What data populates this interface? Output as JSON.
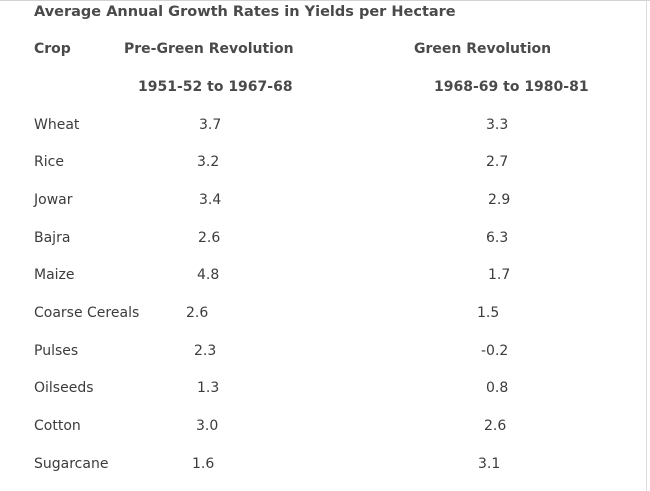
{
  "title": "Average Annual Growth Rates in Yields per Hectare",
  "headers": {
    "crop": "Crop",
    "pre": "Pre-Green Revolution",
    "green": "Green Revolution",
    "pre_period": "1951-52 to 1967-68",
    "green_period": "1968-69 to 1980-81"
  },
  "rows": [
    {
      "crop": "Wheat",
      "pre": "3.7",
      "green": "3.3"
    },
    {
      "crop": "Rice",
      "pre": "3.2",
      "green": "2.7"
    },
    {
      "crop": "Jowar",
      "pre": "3.4",
      "green": "2.9"
    },
    {
      "crop": "Bajra",
      "pre": "2.6",
      "green": "6.3"
    },
    {
      "crop": "Maize",
      "pre": "4.8",
      "green": "1.7"
    },
    {
      "crop": "Coarse Cereals",
      "pre": "2.6",
      "green": "1.5"
    },
    {
      "crop": "Pulses",
      "pre": "2.3",
      "green": "-0.2"
    },
    {
      "crop": "Oilseeds",
      "pre": "1.3",
      "green": "0.8"
    },
    {
      "crop": "Cotton",
      "pre": "3.0",
      "green": "2.6"
    },
    {
      "crop": "Sugarcane",
      "pre": "1.6",
      "green": "3.1"
    }
  ]
}
